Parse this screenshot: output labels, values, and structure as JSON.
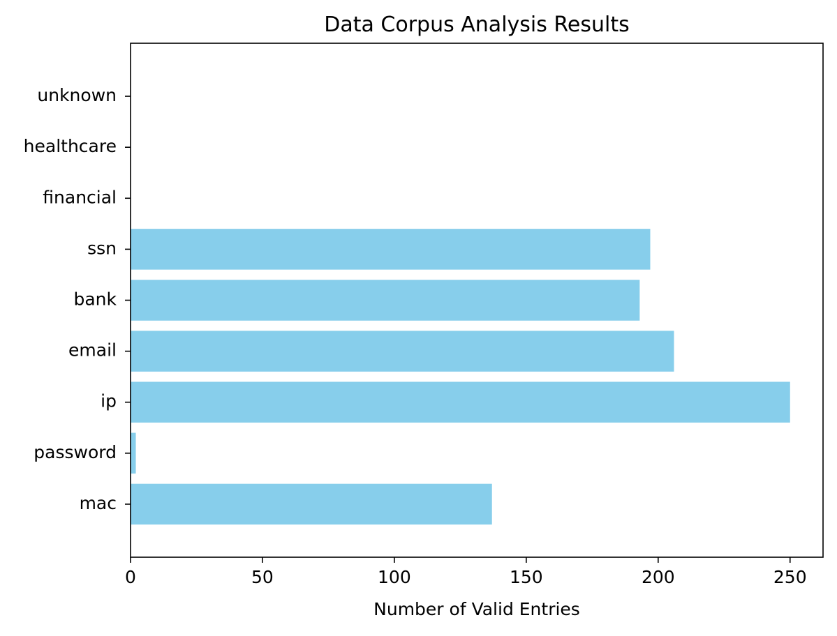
{
  "chart_data": {
    "type": "bar",
    "orientation": "horizontal",
    "title": "Data Corpus Analysis Results",
    "xlabel": "Number of Valid Entries",
    "ylabel": "",
    "categories": [
      "mac",
      "password",
      "ip",
      "email",
      "bank",
      "ssn",
      "financial",
      "healthcare",
      "unknown"
    ],
    "values": [
      137,
      2,
      250,
      206,
      193,
      197,
      0,
      0,
      0
    ],
    "xlim": [
      0,
      262.5
    ],
    "xticks": [
      0,
      50,
      100,
      150,
      200,
      250
    ],
    "grid": false,
    "bar_color": "#87CEEB"
  }
}
